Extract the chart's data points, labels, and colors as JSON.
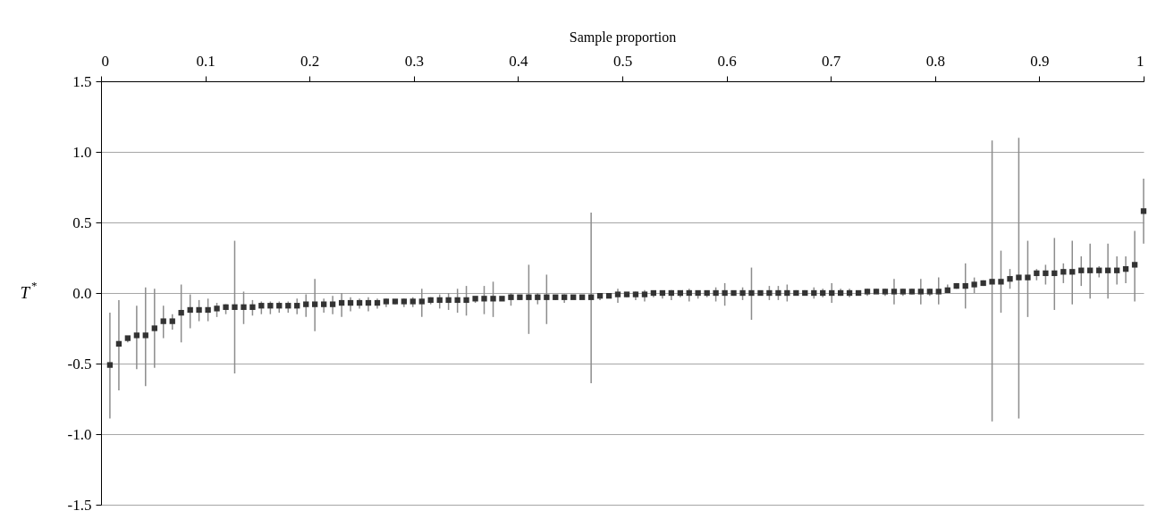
{
  "chart_data": {
    "type": "scatter",
    "xlabel": "Sample proportion",
    "ylabel": "T$^{*}$",
    "xlim": [
      0,
      1
    ],
    "xticks": [
      0,
      0.1,
      0.2,
      0.3,
      0.4,
      0.5,
      0.6,
      0.7,
      0.8,
      0.9,
      1
    ],
    "ylim": [
      -1.5,
      1.5
    ],
    "yticks": [
      {
        "value": -1.5,
        "label": "-1.5"
      },
      {
        "value": -1,
        "label": "-1.0"
      },
      {
        "value": -0.5,
        "label": "-0.5"
      },
      {
        "value": 0,
        "label": "0.0"
      },
      {
        "value": 0.5,
        "label": "0.5"
      },
      {
        "value": 1,
        "label": "1.0"
      },
      {
        "value": 1.5,
        "label": "1.5"
      }
    ],
    "grid": "y",
    "marker": "square",
    "x": [
      0.0085,
      0.0171,
      0.0256,
      0.0342,
      0.0427,
      0.0513,
      0.0598,
      0.0684,
      0.0769,
      0.0855,
      0.094,
      0.1026,
      0.1111,
      0.1197,
      0.1282,
      0.1368,
      0.1453,
      0.1538,
      0.1624,
      0.1709,
      0.1795,
      0.188,
      0.1966,
      0.2051,
      0.2137,
      0.2222,
      0.2308,
      0.2393,
      0.2479,
      0.2564,
      0.265,
      0.2735,
      0.2821,
      0.2906,
      0.2991,
      0.3077,
      0.3162,
      0.3248,
      0.3333,
      0.3419,
      0.3504,
      0.359,
      0.3675,
      0.3761,
      0.3846,
      0.3932,
      0.4017,
      0.4103,
      0.4188,
      0.4274,
      0.4359,
      0.4444,
      0.453,
      0.4615,
      0.4701,
      0.4786,
      0.4872,
      0.4957,
      0.5043,
      0.5128,
      0.5214,
      0.5299,
      0.5385,
      0.547,
      0.5556,
      0.5641,
      0.5726,
      0.5812,
      0.5897,
      0.5983,
      0.6068,
      0.6154,
      0.6239,
      0.6325,
      0.641,
      0.6496,
      0.6581,
      0.6667,
      0.6752,
      0.6838,
      0.6923,
      0.7009,
      0.7094,
      0.7179,
      0.7265,
      0.735,
      0.7436,
      0.7521,
      0.7607,
      0.7692,
      0.7778,
      0.7863,
      0.7949,
      0.8034,
      0.812,
      0.8205,
      0.8291,
      0.8376,
      0.8462,
      0.8547,
      0.8632,
      0.8718,
      0.8803,
      0.8889,
      0.8974,
      0.906,
      0.9145,
      0.9231,
      0.9316,
      0.9402,
      0.9487,
      0.9573,
      0.9658,
      0.9744,
      0.9829,
      0.9915,
      1
    ],
    "series": [
      {
        "color": "#333333",
        "values": [
          -0.51,
          -0.36,
          -0.32,
          -0.3,
          -0.3,
          -0.25,
          -0.2,
          -0.2,
          -0.14,
          -0.12,
          -0.12,
          -0.12,
          -0.11,
          -0.1,
          -0.1,
          -0.1,
          -0.1,
          -0.09,
          -0.09,
          -0.09,
          -0.09,
          -0.09,
          -0.08,
          -0.08,
          -0.08,
          -0.08,
          -0.07,
          -0.07,
          -0.07,
          -0.07,
          -0.07,
          -0.06,
          -0.06,
          -0.06,
          -0.06,
          -0.06,
          -0.05,
          -0.05,
          -0.05,
          -0.05,
          -0.05,
          -0.04,
          -0.04,
          -0.04,
          -0.04,
          -0.03,
          -0.03,
          -0.03,
          -0.03,
          -0.03,
          -0.03,
          -0.03,
          -0.03,
          -0.03,
          -0.03,
          -0.02,
          -0.02,
          -0.01,
          -0.01,
          -0.01,
          -0.01,
          0,
          0,
          0,
          0,
          0,
          0,
          0,
          0,
          0,
          0,
          0,
          0,
          0,
          0,
          0,
          0,
          0,
          0,
          0,
          0,
          0,
          0,
          0,
          0,
          0.01,
          0.01,
          0.01,
          0.01,
          0.01,
          0.01,
          0.01,
          0.01,
          0.01,
          0.02,
          0.05,
          0.05,
          0.06,
          0.07,
          0.08,
          0.08,
          0.1,
          0.11,
          0.11,
          0.14,
          0.14,
          0.14,
          0.15,
          0.15,
          0.16,
          0.16,
          0.16,
          0.16,
          0.16,
          0.17,
          0.2,
          0.58
        ],
        "errors": [
          [
            -0.89,
            -0.14
          ],
          [
            -0.69,
            -0.05
          ],
          [
            -0.35,
            -0.31
          ],
          [
            -0.54,
            -0.09
          ],
          [
            -0.66,
            0.04
          ],
          [
            -0.53,
            0.03
          ],
          [
            -0.32,
            -0.09
          ],
          [
            -0.26,
            -0.15
          ],
          [
            -0.35,
            0.06
          ],
          [
            -0.25,
            -0.01
          ],
          [
            -0.2,
            -0.05
          ],
          [
            -0.2,
            -0.04
          ],
          [
            -0.17,
            -0.07
          ],
          [
            -0.15,
            -0.08
          ],
          [
            -0.57,
            0.37
          ],
          [
            -0.22,
            0.01
          ],
          [
            -0.16,
            -0.05
          ],
          [
            -0.15,
            -0.06
          ],
          [
            -0.15,
            -0.06
          ],
          [
            -0.14,
            -0.06
          ],
          [
            -0.14,
            -0.06
          ],
          [
            -0.15,
            -0.04
          ],
          [
            -0.17,
            -0.01
          ],
          [
            -0.27,
            0.1
          ],
          [
            -0.14,
            -0.04
          ],
          [
            -0.15,
            -0.02
          ],
          [
            -0.17,
            0
          ],
          [
            -0.13,
            -0.03
          ],
          [
            -0.11,
            -0.04
          ],
          [
            -0.13,
            -0.03
          ],
          [
            -0.11,
            -0.04
          ],
          [
            -0.1,
            -0.04
          ],
          [
            -0.08,
            -0.05
          ],
          [
            -0.1,
            -0.04
          ],
          [
            -0.1,
            -0.03
          ],
          [
            -0.17,
            0.03
          ],
          [
            -0.08,
            -0.03
          ],
          [
            -0.11,
            -0.01
          ],
          [
            -0.12,
            0
          ],
          [
            -0.14,
            0.03
          ],
          [
            -0.16,
            0.05
          ],
          [
            -0.07,
            -0.03
          ],
          [
            -0.15,
            0.05
          ],
          [
            -0.17,
            0.08
          ],
          [
            -0.05,
            -0.03
          ],
          [
            -0.09,
            0
          ],
          [
            -0.05,
            -0.02
          ],
          [
            -0.29,
            0.2
          ],
          [
            -0.08,
            0
          ],
          [
            -0.22,
            0.13
          ],
          [
            -0.05,
            -0.02
          ],
          [
            -0.07,
            -0.01
          ],
          [
            -0.04,
            -0.02
          ],
          [
            -0.04,
            -0.02
          ],
          [
            -0.64,
            0.57
          ],
          [
            -0.05,
            -0.01
          ],
          [
            -0.03,
            -0.01
          ],
          [
            -0.07,
            0.03
          ],
          [
            -0.03,
            0
          ],
          [
            -0.05,
            0.01
          ],
          [
            -0.06,
            0.02
          ],
          [
            -0.03,
            0.01
          ],
          [
            -0.04,
            0.01
          ],
          [
            -0.05,
            0.02
          ],
          [
            -0.03,
            0.01
          ],
          [
            -0.06,
            0.03
          ],
          [
            -0.04,
            0.01
          ],
          [
            -0.03,
            0.01
          ],
          [
            -0.06,
            0.04
          ],
          [
            -0.09,
            0.07
          ],
          [
            -0.02,
            0.01
          ],
          [
            -0.05,
            0.04
          ],
          [
            -0.19,
            0.18
          ],
          [
            -0.01,
            0.01
          ],
          [
            -0.05,
            0.05
          ],
          [
            -0.05,
            0.05
          ],
          [
            -0.06,
            0.06
          ],
          [
            -0.01,
            0.02
          ],
          [
            -0.01,
            0.02
          ],
          [
            -0.04,
            0.04
          ],
          [
            -0.03,
            0.03
          ],
          [
            -0.07,
            0.07
          ],
          [
            -0.02,
            0.03
          ],
          [
            -0.03,
            0.03
          ],
          [
            -0.01,
            0.01
          ],
          [
            -0.02,
            0.03
          ],
          [
            0,
            0.03
          ],
          [
            -0.02,
            0.03
          ],
          [
            -0.08,
            0.1
          ],
          [
            -0.02,
            0.03
          ],
          [
            -0.01,
            0.03
          ],
          [
            -0.08,
            0.1
          ],
          [
            -0.02,
            0.03
          ],
          [
            -0.08,
            0.11
          ],
          [
            0,
            0.06
          ],
          [
            0.03,
            0.07
          ],
          [
            -0.11,
            0.21
          ],
          [
            0,
            0.11
          ],
          [
            0.05,
            0.09
          ],
          [
            -0.91,
            1.08
          ],
          [
            -0.14,
            0.3
          ],
          [
            0.03,
            0.17
          ],
          [
            -0.89,
            1.1
          ],
          [
            -0.17,
            0.37
          ],
          [
            0.09,
            0.17
          ],
          [
            0.06,
            0.2
          ],
          [
            -0.12,
            0.39
          ],
          [
            0.07,
            0.21
          ],
          [
            -0.08,
            0.37
          ],
          [
            0.05,
            0.26
          ],
          [
            -0.04,
            0.35
          ],
          [
            0.11,
            0.19
          ],
          [
            -0.04,
            0.35
          ],
          [
            0.06,
            0.26
          ],
          [
            0.07,
            0.26
          ],
          [
            -0.06,
            0.44
          ],
          [
            0.35,
            0.81
          ]
        ]
      }
    ]
  }
}
